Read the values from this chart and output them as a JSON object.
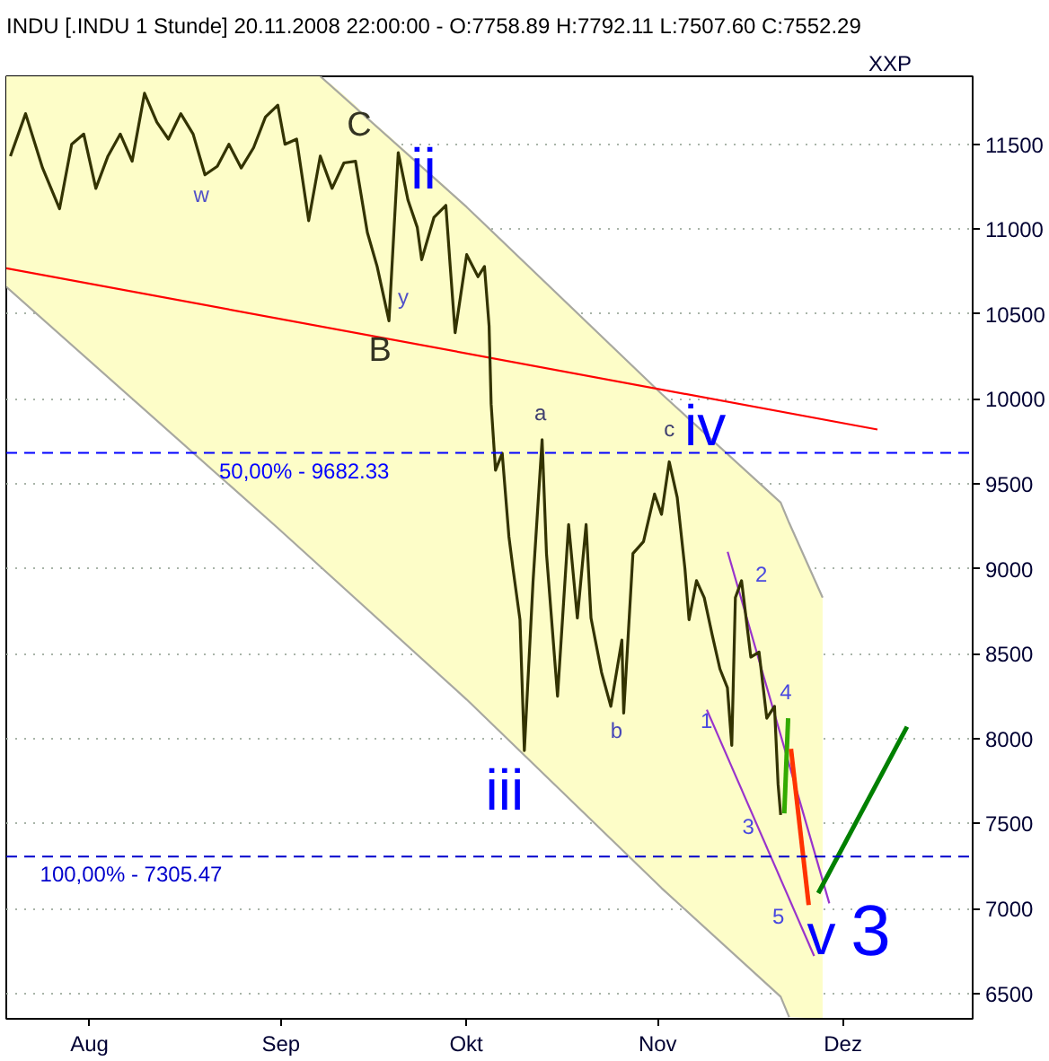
{
  "chart_data": {
    "type": "line",
    "title": "INDU [.INDU 1 Stunde] 20.11.2008 22:00:00 - O:7758.89 H:7792.11 L:7507.60 C:7552.29",
    "ylabel": "XXP",
    "xlim": [
      "2008-07-18T13:00",
      "2008-12-22T00:00"
    ],
    "xticks": [
      {
        "value": "2008-08-01",
        "label": "Aug"
      },
      {
        "value": "2008-09-01",
        "label": "Sep"
      },
      {
        "value": "2008-10-01",
        "label": "Okt"
      },
      {
        "value": "2008-11-01",
        "label": "Nov"
      },
      {
        "value": "2008-12-01",
        "label": "Dez"
      }
    ],
    "ylim": [
      6350,
      11900
    ],
    "yticks": [
      6500,
      7000,
      7500,
      8000,
      8500,
      9000,
      9500,
      10000,
      10500,
      11000,
      11500
    ],
    "grid": "y",
    "series": [
      {
        "type": "line",
        "color": "#a8a8a0",
        "x": [
          "2008-09-07T09:00",
          "2008-10-01T02:00",
          "2008-11-01T15:00",
          "2008-11-20T22:00",
          "2008-11-22T07:00",
          "2008-11-27T17:00"
        ],
        "values": [
          11900,
          11130,
          10030,
          9390,
          9270,
          8830
        ]
      },
      {
        "type": "line",
        "color": "#a8a8a0",
        "x": [
          "2008-07-18T13:00",
          "2008-08-31T12:00",
          "2008-10-01T02:00",
          "2008-11-01T15:00",
          "2008-11-20T22:00",
          "2008-11-22T07:00"
        ],
        "values": [
          10660,
          9240,
          8230,
          7120,
          6480,
          6360
        ]
      },
      {
        "type": "line",
        "color": "#ff0000",
        "x": [
          "2008-07-18T13:00",
          "2008-12-06T14:00"
        ],
        "values": [
          10770,
          9820
        ]
      },
      {
        "type": "line",
        "color": "#9933cc",
        "x": [
          "2008-11-12T08:00",
          "2008-11-28T19:00"
        ],
        "values": [
          9100,
          7030
        ]
      },
      {
        "type": "line",
        "color": "#9933cc",
        "x": [
          "2008-11-08T23:00",
          "2008-11-26T08:00"
        ],
        "values": [
          8170,
          6720
        ]
      },
      {
        "color": "#333300",
        "x": [
          "2008-07-18T13:00",
          "2008-07-19T05:00",
          "2008-07-21T16:00",
          "2008-07-24T10:00",
          "2008-07-27T04:00",
          "2008-07-29T03:00",
          "2008-07-31T02:00",
          "2008-08-02T01:00",
          "2008-08-04T00:00",
          "2008-08-06T00:00",
          "2008-08-07T22:00",
          "2008-08-09T22:00",
          "2008-08-11T22:00",
          "2008-08-13T19:00",
          "2008-08-15T19:00",
          "2008-08-17T19:00",
          "2008-08-19T17:00",
          "2008-08-21T17:00",
          "2008-08-23T14:00",
          "2008-08-25T14:00",
          "2008-08-27T14:00",
          "2008-08-29T12:00",
          "2008-08-31T12:00",
          "2008-09-01T16:00",
          "2008-09-03T13:00",
          "2008-09-05T12:00",
          "2008-09-07T09:00",
          "2008-09-09T07:00",
          "2008-09-11T05:00",
          "2008-09-13T02:00",
          "2008-09-15T00:00",
          "2008-09-16T14:00",
          "2008-09-18T12:00",
          "2008-09-20T00:00",
          "2008-09-21T14:00",
          "2008-09-23T02:00",
          "2008-09-23T19:00",
          "2008-09-25T19:00",
          "2008-09-27T17:00",
          "2008-09-28T10:00",
          "2008-09-29T05:00",
          "2008-10-01T02:00",
          "2008-10-02T22:00",
          "2008-10-03T23:00",
          "2008-10-04T17:00",
          "2008-10-05T01:00",
          "2008-10-05T18:00",
          "2008-10-06T20:00",
          "2008-10-07T22:00",
          "2008-10-08T14:00",
          "2008-10-09T17:00",
          "2008-10-10T10:00",
          "2008-10-11T20:00",
          "2008-10-13T07:00",
          "2008-10-14T00:00",
          "2008-10-15T19:00",
          "2008-10-17T14:00",
          "2008-10-19T00:00",
          "2008-10-20T10:00",
          "2008-10-21T05:00",
          "2008-10-22T22:00",
          "2008-10-24T10:00",
          "2008-10-26T05:00",
          "2008-10-26T12:00",
          "2008-10-28T00:00",
          "2008-10-29T17:00",
          "2008-10-31T12:00",
          "2008-11-01T15:00",
          "2008-11-02T21:00",
          "2008-11-04T04:00",
          "2008-11-05T10:00",
          "2008-11-06T02:00",
          "2008-11-07T07:00",
          "2008-11-08T13:00",
          "2008-11-09T20:00",
          "2008-11-11T02:00",
          "2008-11-12T07:00",
          "2008-11-13T00:00",
          "2008-11-13T14:00",
          "2008-11-14T14:00",
          "2008-11-16T02:00",
          "2008-11-17T10:00",
          "2008-11-18T16:00",
          "2008-11-19T22:00",
          "2008-11-20T12:00",
          "2008-11-20T22:00",
          "2008-11-22T07:00",
          "2008-11-27T17:00"
        ],
        "values": [
          null,
          11430,
          11680,
          11360,
          11120,
          11500,
          11560,
          11240,
          11430,
          11560,
          11400,
          11800,
          11630,
          11530,
          11680,
          11560,
          11320,
          11370,
          11500,
          11360,
          11480,
          11660,
          11730,
          11500,
          11530,
          11050,
          11430,
          11240,
          11390,
          11400,
          10980,
          10780,
          10460,
          11450,
          11170,
          11010,
          10820,
          11070,
          11140,
          10780,
          10390,
          10850,
          10720,
          10780,
          10430,
          9970,
          9580,
          9680,
          9190,
          9000,
          8700,
          7930,
          8930,
          9760,
          9090,
          8250,
          9260,
          8710,
          9260,
          8710,
          8390,
          8190,
          8580,
          8150,
          9090,
          9160,
          9440,
          9320,
          9630,
          9420,
          9000,
          8700,
          8930,
          8830,
          8610,
          8410,
          8300,
          7960,
          8830,
          8930,
          8480,
          8510,
          8120,
          8190,
          7730,
          7550,
          null,
          null
        ],
        "upper": [
          11900,
          11900,
          11900,
          11900,
          11900,
          11900,
          11900,
          11900,
          11900,
          11900,
          11900,
          11900,
          11900,
          11900,
          11900,
          11900,
          11900,
          11900,
          11900,
          11900,
          11900,
          11900,
          11900,
          11900,
          11900,
          11900,
          11900,
          11850,
          11790,
          11730,
          11660,
          11610,
          11550,
          11500,
          11450,
          11400,
          11370,
          11310,
          11250,
          11220,
          11200,
          11130,
          11070,
          11030,
          11010,
          11000,
          10970,
          10930,
          10900,
          10870,
          10830,
          10810,
          10760,
          10710,
          10680,
          10620,
          10560,
          10510,
          10460,
          10430,
          10370,
          10320,
          10250,
          10240,
          10190,
          10130,
          10070,
          10030,
          9990,
          9940,
          9900,
          9880,
          9840,
          9800,
          9760,
          9710,
          9670,
          9650,
          9630,
          9600,
          9550,
          9500,
          9460,
          9420,
          9400,
          9390,
          9270,
          8830
        ],
        "lower": [
          10660,
          10640,
          10560,
          10470,
          10380,
          10320,
          10250,
          10190,
          10130,
          10070,
          10000,
          9940,
          9880,
          9810,
          9750,
          9690,
          9620,
          9560,
          9500,
          9430,
          9370,
          9310,
          9240,
          9210,
          9140,
          9080,
          9020,
          8950,
          8890,
          8830,
          8760,
          8710,
          8650,
          8600,
          8550,
          8500,
          8470,
          8410,
          8350,
          8320,
          8300,
          8230,
          8170,
          8130,
          8110,
          8090,
          8070,
          8030,
          7990,
          7970,
          7930,
          7900,
          7850,
          7800,
          7780,
          7720,
          7650,
          7600,
          7550,
          7530,
          7460,
          7410,
          7350,
          7340,
          7290,
          7220,
          7160,
          7120,
          7080,
          7040,
          7000,
          6970,
          6930,
          6890,
          6850,
          6810,
          6760,
          6740,
          6720,
          6690,
          6640,
          6590,
          6550,
          6510,
          6490,
          6480,
          6360,
          6350
        ]
      },
      {
        "type": "line",
        "color": "#33aa00",
        "x": [
          "2008-11-21T12:00",
          "2008-11-22T03:00"
        ],
        "values": [
          7560,
          8120
        ]
      },
      {
        "type": "line",
        "color": "#ff3300",
        "x": [
          "2008-11-22T14:00",
          "2008-11-25T11:00"
        ],
        "values": [
          7940,
          7020
        ]
      },
      {
        "type": "line",
        "color": "#008000",
        "x": [
          "2008-11-27T00:00",
          "2008-12-11T09:00"
        ],
        "values": [
          7090,
          8070
        ]
      }
    ],
    "ref_lines": [
      {
        "axis": "y",
        "value": 9682.33,
        "color": "#0000ff",
        "line_style": "dashed"
      },
      {
        "axis": "y",
        "value": 7305.47,
        "color": "#0000cc",
        "line_style": "dashed"
      }
    ],
    "annotations": [
      {
        "text": "w",
        "x": "2008-08-19T17:00",
        "y": 11320
      },
      {
        "text": "C",
        "x": "2008-09-13T02:00",
        "y": 11400
      },
      {
        "text": "ii",
        "x": "2008-09-20T00:00",
        "y": 11450
      },
      {
        "text": "y",
        "x": "2008-09-18T12:00",
        "y": 10460
      },
      {
        "text": "B",
        "x": "2008-09-18T12:00",
        "y": 10460
      },
      {
        "text": "a",
        "x": "2008-10-13T07:00",
        "y": 9760
      },
      {
        "text": "c",
        "x": "2008-11-02T21:00",
        "y": 9630
      },
      {
        "text": "iv",
        "x": "2008-11-02T21:00",
        "y": 9630
      },
      {
        "text": "iii",
        "x": "2008-10-10T10:00",
        "y": 7930
      },
      {
        "text": "b",
        "x": "2008-10-26T12:00",
        "y": 8150
      },
      {
        "text": "1",
        "x": "2008-11-13T00:00",
        "y": 7960
      },
      {
        "text": "2",
        "x": "2008-11-14T14:00",
        "y": 8930
      },
      {
        "text": "3",
        "x": "2008-11-20T22:00",
        "y": 7550
      },
      {
        "text": "4",
        "x": "2008-11-18T20:00",
        "y": 8280
      },
      {
        "text": "5",
        "x": "2008-11-23T11:00",
        "y": 6960
      },
      {
        "text": "v",
        "x": "2008-11-26T08:00",
        "y": 6720
      },
      {
        "text": "3",
        "x": "2008-11-28T19:00",
        "y": 7030
      },
      {
        "text": "50,00% - 9682.33",
        "x": "2008-08-22T00:00",
        "y": 9682.33
      },
      {
        "text": "100,00% - 7305.47",
        "x": "2008-07-24T00:00",
        "y": 7305.47
      }
    ]
  }
}
